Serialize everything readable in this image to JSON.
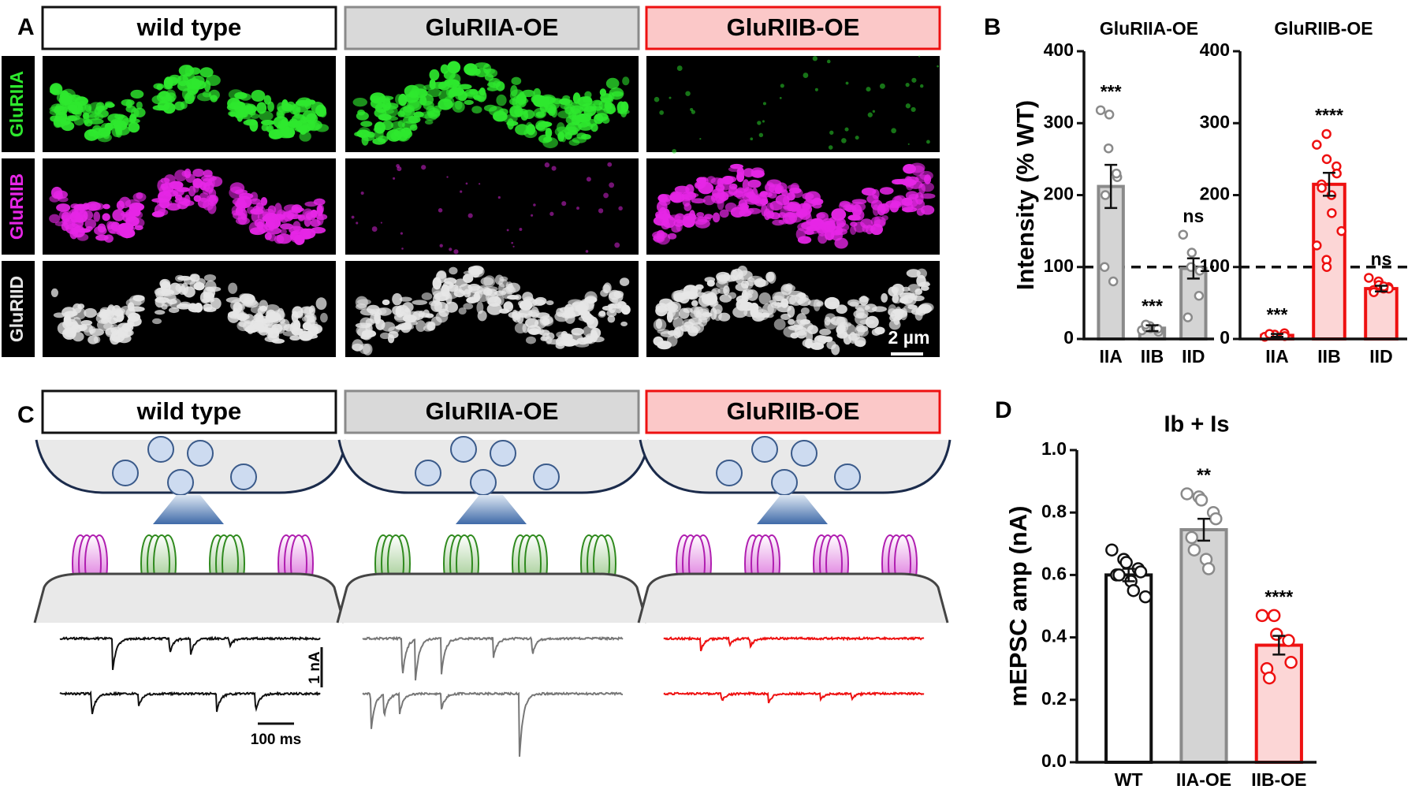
{
  "panels": {
    "A": {
      "label": "A",
      "headers": [
        "wild type",
        "GluRIIA-OE",
        "GluRIIB-OE"
      ],
      "channels": [
        "GluRIIA",
        "GluRIIB",
        "GluRIID"
      ],
      "scale_bar": "2 µm"
    },
    "B": {
      "label": "B"
    },
    "C": {
      "label": "C",
      "headers": [
        "wild type",
        "GluRIIA-OE",
        "GluRIIB-OE"
      ],
      "scale_bars": [
        "1 nA",
        "100 ms"
      ]
    },
    "D": {
      "label": "D"
    }
  },
  "chart_data": [
    {
      "type": "bar",
      "title": "GluRIIA-OE",
      "ylabel": "Intensity (% WT)",
      "categories": [
        "IIA",
        "IIB",
        "IID"
      ],
      "values": [
        212,
        15,
        98
      ],
      "errors": [
        30,
        4,
        14
      ],
      "points": [
        [
          318,
          312,
          265,
          225,
          230,
          200,
          100,
          80
        ],
        [
          12,
          15,
          18,
          10,
          14,
          16,
          20
        ],
        [
          145,
          120,
          100,
          95,
          60,
          30
        ]
      ],
      "annotations": [
        "***",
        "***",
        "ns"
      ],
      "reference_line": 100,
      "ylim": [
        0,
        400
      ],
      "yticks": [
        0,
        100,
        200,
        300,
        400
      ],
      "bar_colors": [
        "#d4d4d4",
        "#d4d4d4",
        "#d4d4d4"
      ],
      "edge_colors": [
        "#8a8a8a",
        "#8a8a8a",
        "#8a8a8a"
      ]
    },
    {
      "type": "bar",
      "title": "GluRIIB-OE",
      "categories": [
        "IIA",
        "IIB",
        "IID"
      ],
      "values": [
        5,
        215,
        70
      ],
      "errors": [
        2,
        16,
        4
      ],
      "points": [
        [
          3,
          5,
          6,
          8,
          4,
          7
        ],
        [
          270,
          285,
          250,
          240,
          230,
          215,
          210,
          200,
          175,
          150,
          130,
          110,
          100
        ],
        [
          85,
          80,
          75,
          72,
          70,
          68,
          65,
          70,
          73
        ]
      ],
      "annotations": [
        "***",
        "****",
        "ns"
      ],
      "reference_line": 100,
      "ylim": [
        0,
        400
      ],
      "yticks": [
        0,
        100,
        200,
        300,
        400
      ],
      "bar_colors": [
        "#fcd6d6",
        "#fcd6d6",
        "#fcd6d6"
      ],
      "edge_colors": [
        "#ee1111",
        "#ee1111",
        "#ee1111"
      ]
    },
    {
      "type": "bar",
      "title": "Ib + Is",
      "ylabel": "mEPSC amp (nA)",
      "categories": [
        "WT",
        "IIA-OE",
        "IIB-OE"
      ],
      "values": [
        0.6,
        0.745,
        0.375
      ],
      "errors": [
        0.02,
        0.035,
        0.03
      ],
      "points": [
        [
          0.68,
          0.65,
          0.64,
          0.62,
          0.61,
          0.6,
          0.6,
          0.58,
          0.55,
          0.53
        ],
        [
          0.86,
          0.85,
          0.84,
          0.8,
          0.78,
          0.72,
          0.68,
          0.65,
          0.62
        ],
        [
          0.47,
          0.47,
          0.41,
          0.39,
          0.32,
          0.3,
          0.27
        ]
      ],
      "annotations": [
        null,
        "**",
        "****"
      ],
      "ylim": [
        0,
        1
      ],
      "yticks": [
        {
          "value": 0,
          "label": "0.0"
        },
        {
          "value": 0.2,
          "label": "0.2"
        },
        {
          "value": 0.4,
          "label": "0.4"
        },
        {
          "value": 0.6,
          "label": "0.6"
        },
        {
          "value": 0.8,
          "label": "0.8"
        },
        {
          "value": 1,
          "label": "1.0"
        }
      ],
      "bar_colors": [
        "#ffffff",
        "#d4d4d4",
        "#fcd6d6"
      ],
      "edge_colors": [
        "#111111",
        "#8a8a8a",
        "#ee1111"
      ]
    }
  ]
}
